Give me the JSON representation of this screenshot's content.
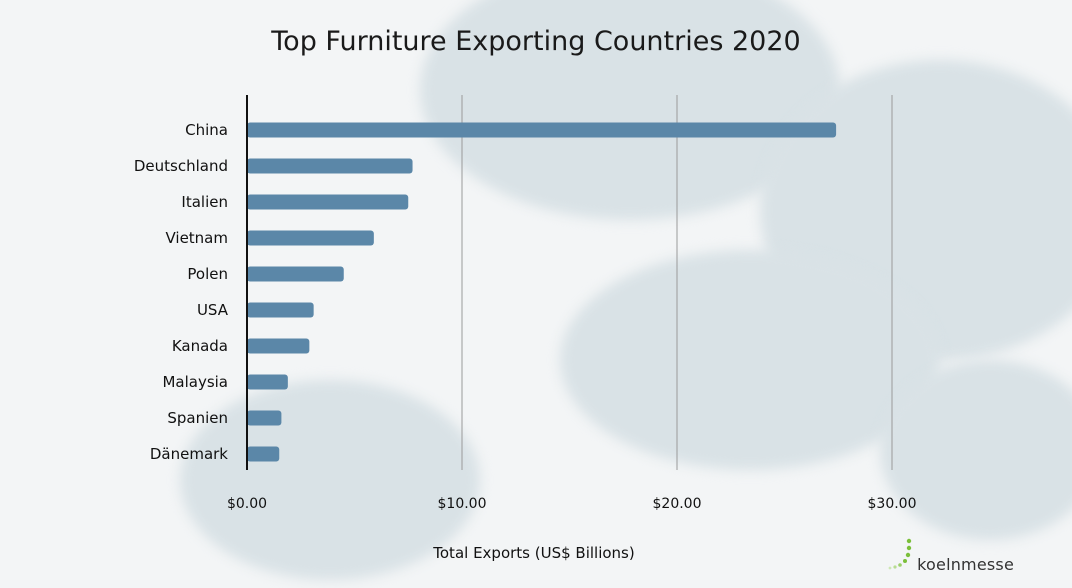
{
  "chart_data": {
    "type": "bar",
    "orientation": "horizontal",
    "title": "Top Furniture Exporting Countries 2020",
    "xlabel": "Total Exports (US$ Billions)",
    "ylabel": "",
    "categories": [
      "China",
      "Deutschland",
      "Italien",
      "Vietnam",
      "Polen",
      "USA",
      "Kanada",
      "Malaysia",
      "Spanien",
      "Dänemark"
    ],
    "values": [
      27.4,
      7.7,
      7.5,
      5.9,
      4.5,
      3.1,
      2.9,
      1.9,
      1.6,
      1.5
    ],
    "xlim": [
      0,
      30
    ],
    "xticks": [
      0,
      10,
      20,
      30
    ],
    "xtick_labels": [
      "$0.00",
      "$10.00",
      "$20.00",
      "$30.00"
    ],
    "grid": "vertical",
    "bar_color": "#5b87a8"
  },
  "logo": {
    "text": "koelnmesse",
    "color": "#7bbf3a"
  }
}
